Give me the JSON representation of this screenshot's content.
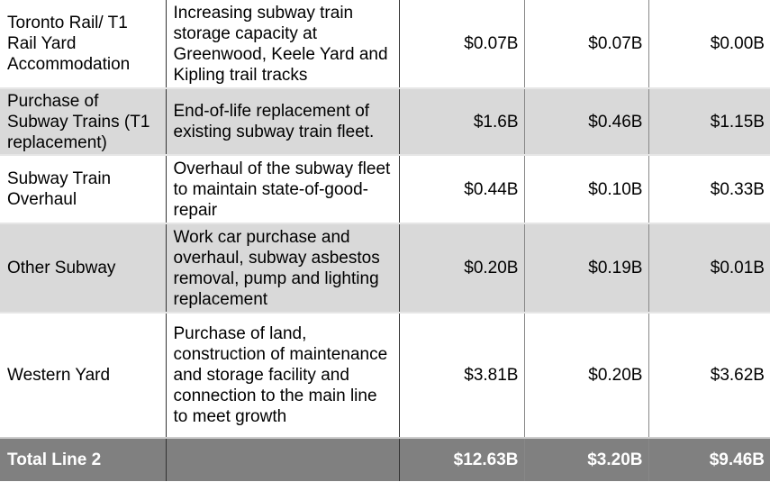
{
  "rows": [
    {
      "project": "Toronto Rail/ T1 Rail Yard Accommodation",
      "description": "Increasing subway train storage capacity at Greenwood, Keele Yard and Kipling trail tracks",
      "v1": "$0.07B",
      "v2": "$0.07B",
      "v3": "$0.00B",
      "shaded": false
    },
    {
      "project": "Purchase of Subway Trains (T1 replacement)",
      "description": "End-of-life replacement of existing subway train fleet.",
      "v1": "$1.6B",
      "v2": "$0.46B",
      "v3": "$1.15B",
      "shaded": true
    },
    {
      "project": "Subway Train Overhaul",
      "description": "Overhaul of the subway fleet to maintain state-of-good-repair",
      "v1": "$0.44B",
      "v2": "$0.10B",
      "v3": "$0.33B",
      "shaded": false
    },
    {
      "project": "Other Subway",
      "description": "Work car purchase and overhaul, subway asbestos removal, pump and lighting replacement",
      "v1": "$0.20B",
      "v2": "$0.19B",
      "v3": "$0.01B",
      "shaded": true
    },
    {
      "project": "Western Yard",
      "description": "Purchase of land, construction of maintenance and storage facility and connection to the main line to meet growth",
      "v1": "$3.81B",
      "v2": "$0.20B",
      "v3": "$3.62B",
      "shaded": false
    }
  ],
  "total": {
    "label": "Total Line 2",
    "description": "",
    "v1": "$12.63B",
    "v2": "$3.20B",
    "v3": "$9.46B"
  },
  "colors": {
    "shade": "#d9d9d9",
    "total_bg": "#808080"
  }
}
